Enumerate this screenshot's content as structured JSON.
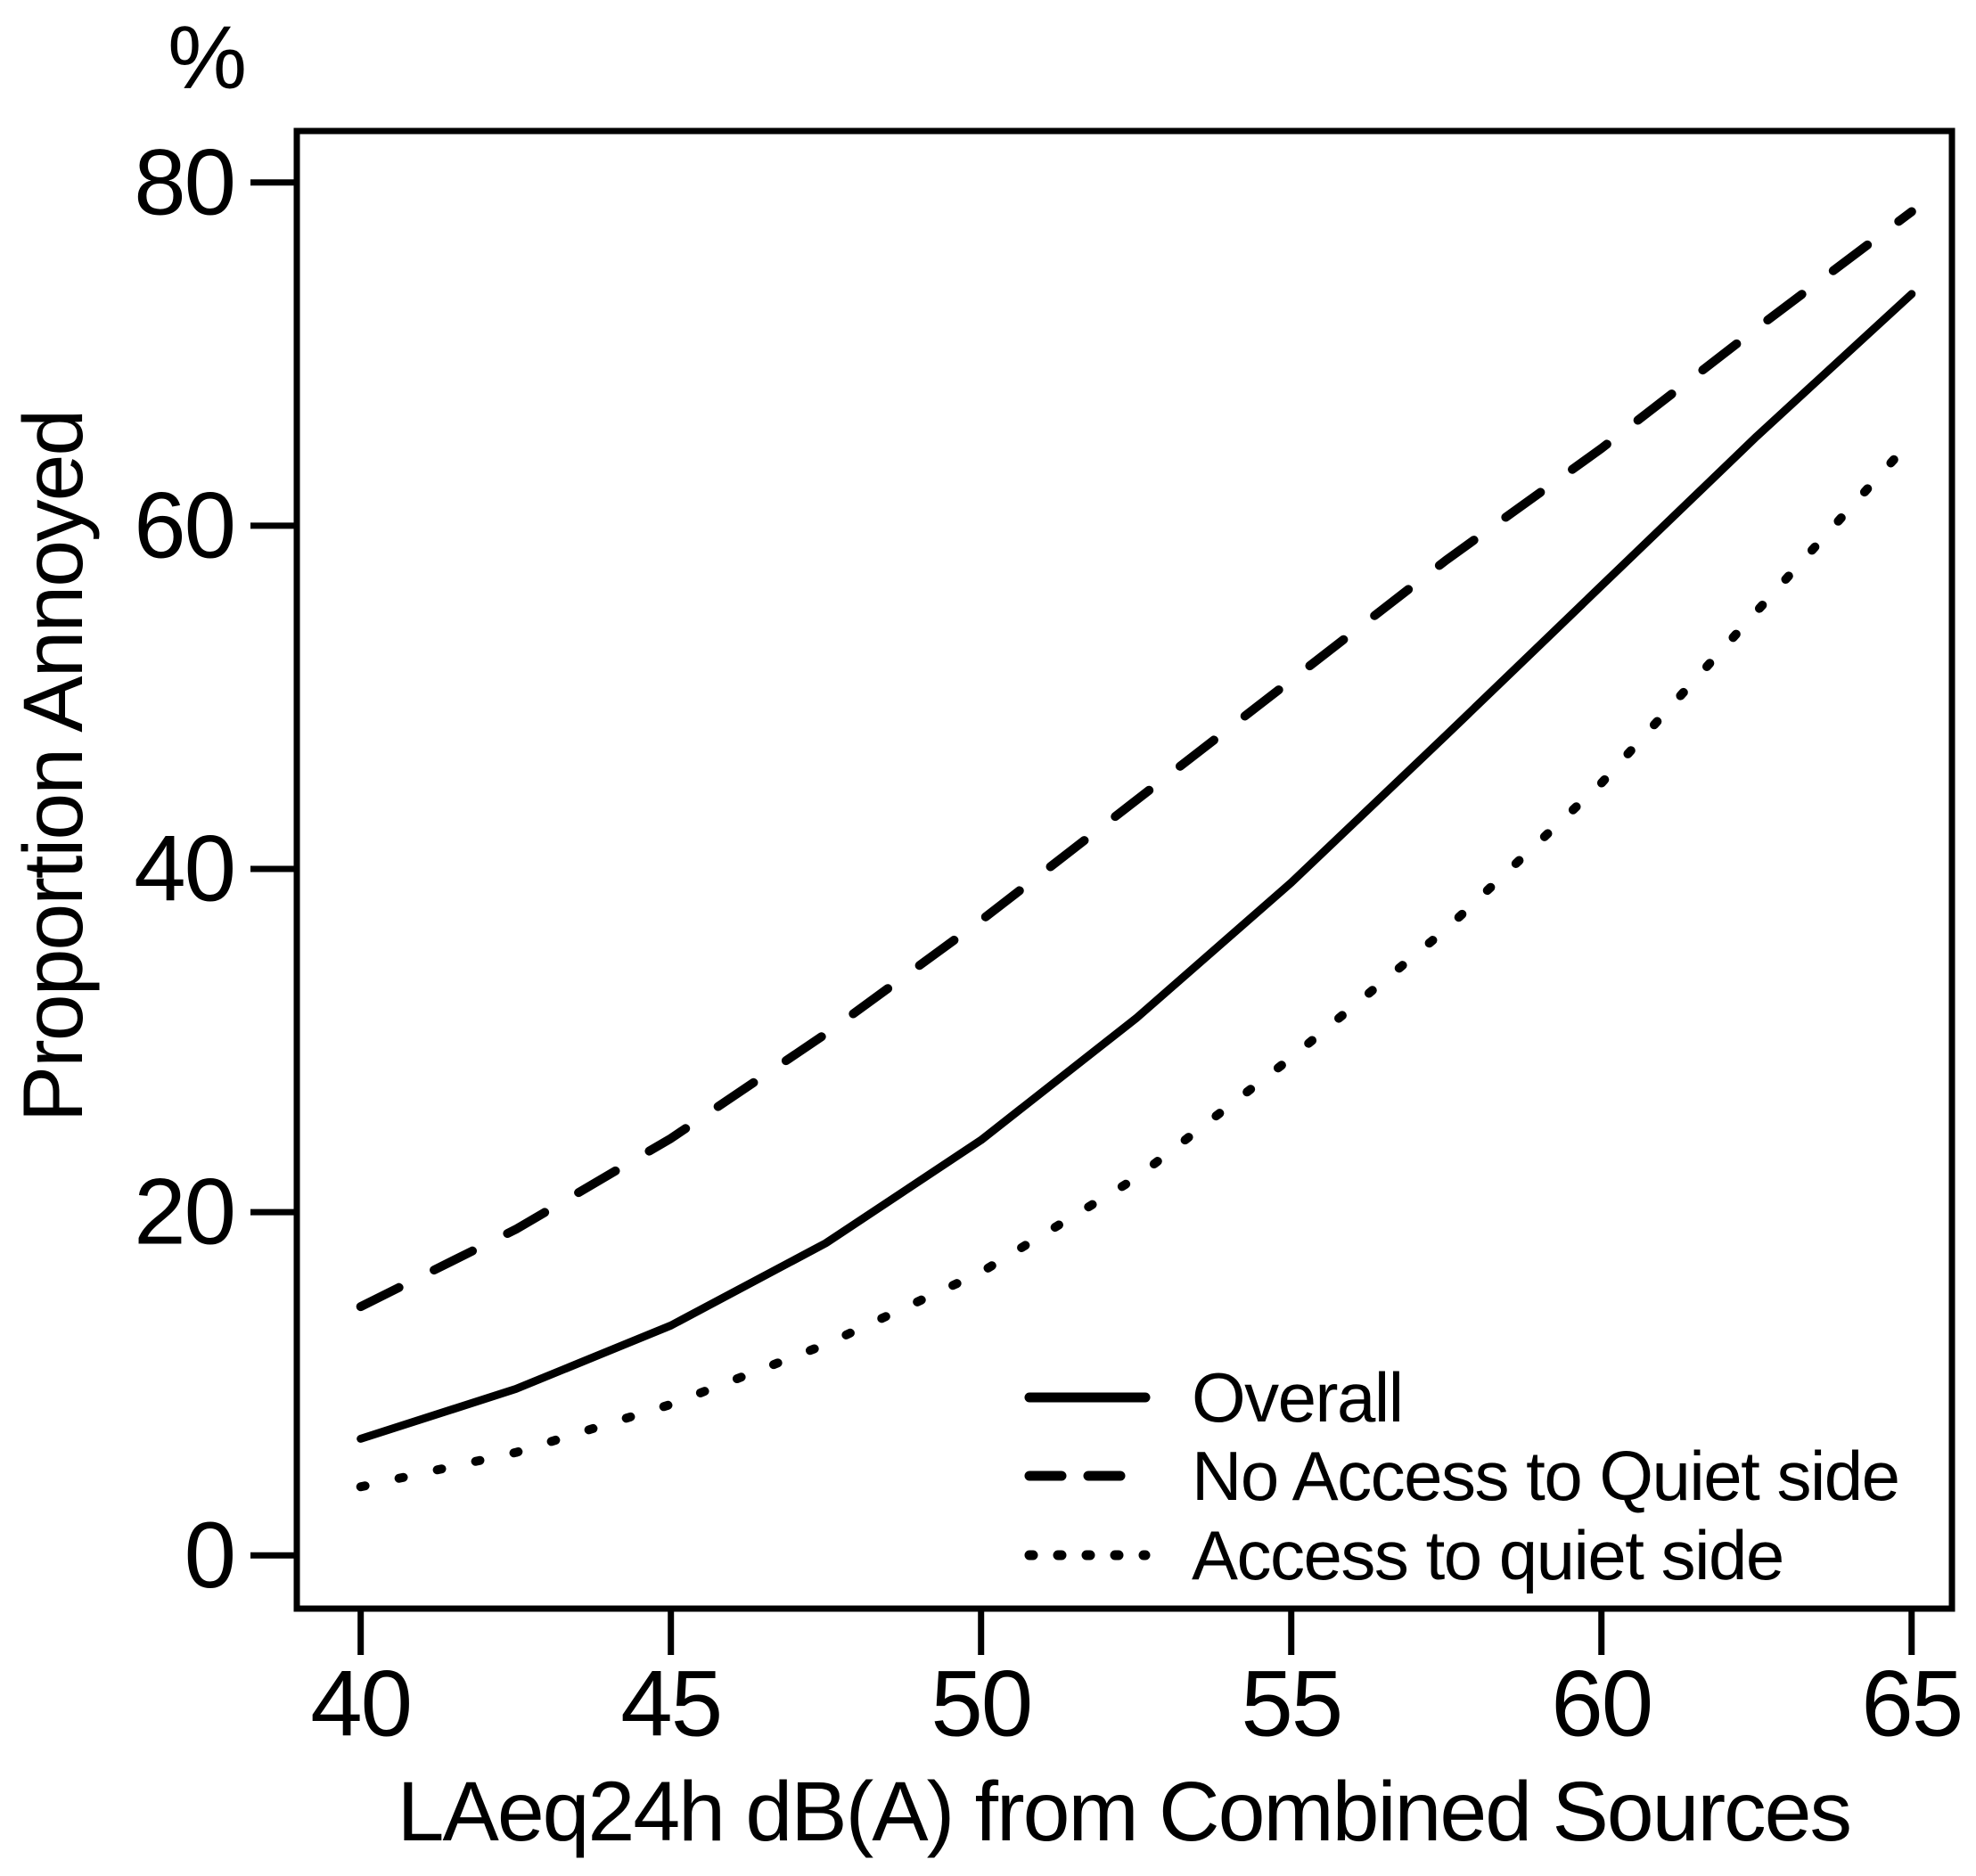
{
  "figure": {
    "percent_label": "%",
    "y_axis_title": "Proportion Annoyed",
    "x_axis_title": "LAeq24h dB(A) from Combined Sources"
  },
  "chart_data": {
    "type": "line",
    "title": "",
    "xlabel": "LAeq24h dB(A) from Combined Sources",
    "ylabel": "Proportion Annoyed",
    "y_unit": "%",
    "xlim": [
      38.97,
      65.65
    ],
    "ylim": [
      -3.1,
      83.0
    ],
    "x_ticks": [
      40,
      45,
      50,
      55,
      60,
      65
    ],
    "y_ticks": [
      0,
      20,
      40,
      60,
      80
    ],
    "grid": false,
    "legend_position": "inside-bottom-right",
    "line_color": "#000000",
    "background": "#ffffff",
    "x": [
      40,
      42.5,
      45,
      47.5,
      50,
      52.5,
      55,
      57.5,
      60,
      62.5,
      65
    ],
    "series": [
      {
        "name": "Overall",
        "style": "solid",
        "values": [
          6.8,
          9.7,
          13.4,
          18.2,
          24.2,
          31.3,
          39.2,
          47.8,
          56.5,
          65.2,
          73.5
        ]
      },
      {
        "name": "No Access to Quiet side",
        "style": "dashed",
        "values": [
          14.5,
          19.0,
          24.3,
          30.4,
          37.0,
          44.0,
          51.0,
          58.0,
          64.5,
          71.5,
          78.3
        ]
      },
      {
        "name": "Access to quiet side",
        "style": "dotted",
        "values": [
          4.0,
          6.0,
          8.8,
          12.3,
          16.5,
          22.0,
          29.0,
          36.5,
          45.0,
          55.0,
          65.0
        ]
      }
    ]
  }
}
